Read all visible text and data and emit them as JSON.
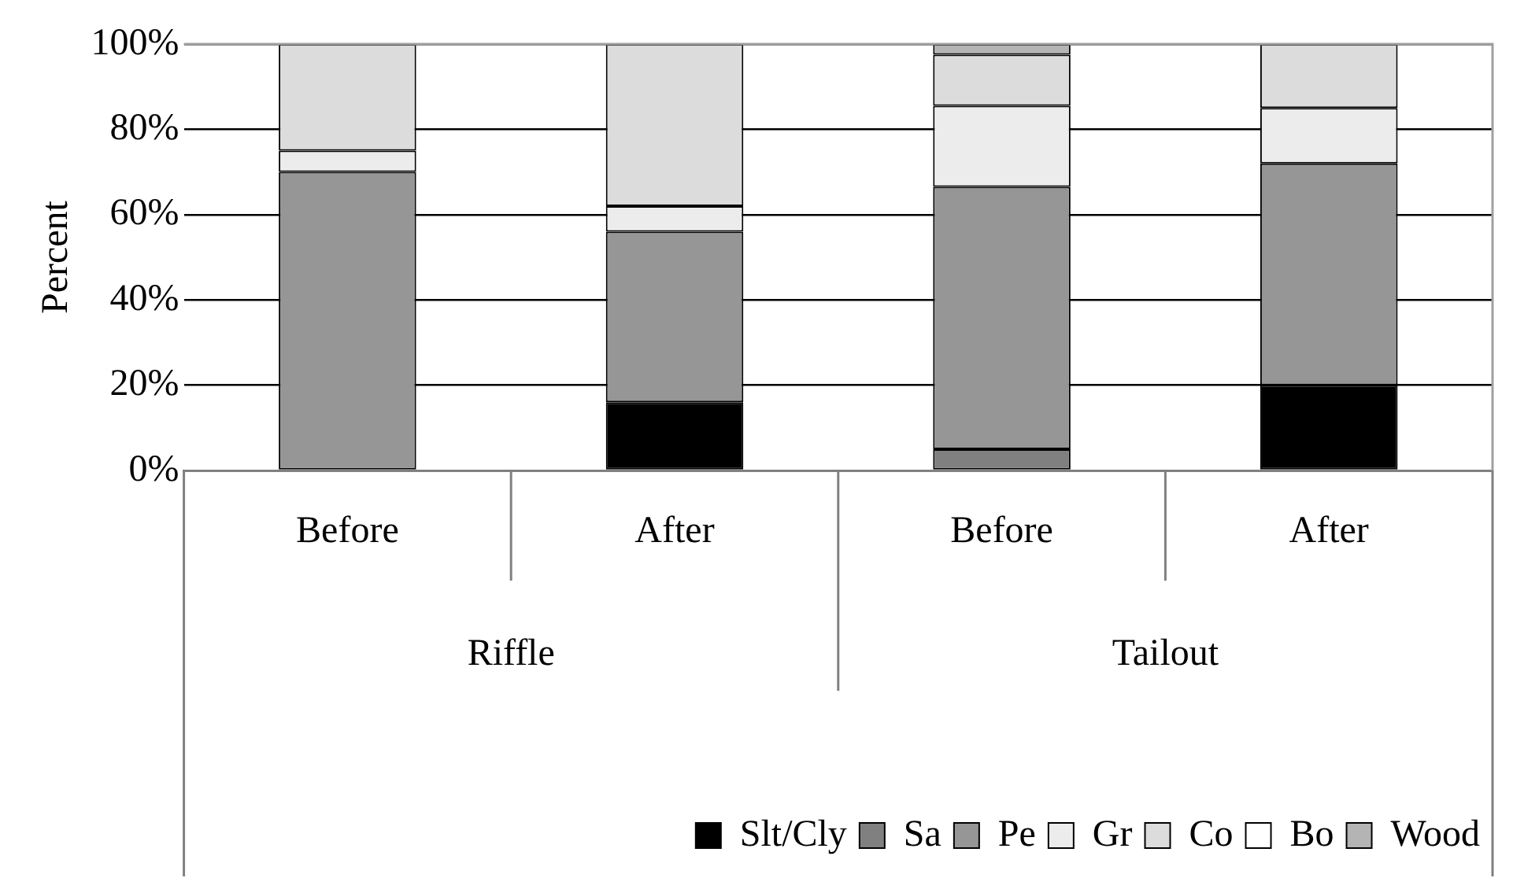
{
  "chart_data": {
    "type": "bar",
    "stacked": true,
    "ylabel": "Percent",
    "categories": [
      "Before",
      "After",
      "Before",
      "After"
    ],
    "annotations": [
      "Riffle",
      "Tailout"
    ],
    "series": [
      {
        "name": "Slt/Cly",
        "color": "#000000",
        "values": [
          0,
          16,
          0,
          20
        ]
      },
      {
        "name": "Sa",
        "color": "#808080",
        "values": [
          0,
          0,
          5,
          0
        ]
      },
      {
        "name": "Pe",
        "color": "#969696",
        "values": [
          70,
          40,
          61.5,
          52
        ]
      },
      {
        "name": "Gr",
        "color": "#ececec",
        "values": [
          5,
          6,
          19,
          13
        ]
      },
      {
        "name": "Co",
        "color": "#dcdcdc",
        "values": [
          25,
          38,
          12,
          15
        ]
      },
      {
        "name": "Bo",
        "color": "#ffffff",
        "values": [
          null,
          null,
          null,
          null
        ]
      },
      {
        "name": "Wood",
        "color": "#b4b4b4",
        "values": [
          null,
          null,
          2.5,
          null
        ]
      }
    ],
    "ylim": [
      0,
      100
    ],
    "yticks": [
      {
        "value": 0,
        "label": "0%"
      },
      {
        "value": 20,
        "label": "20%"
      },
      {
        "value": 40,
        "label": "40%"
      },
      {
        "value": 60,
        "label": "60%"
      },
      {
        "value": 80,
        "label": "80%"
      },
      {
        "value": 100,
        "label": "100%"
      }
    ],
    "grid": "y",
    "legend": "bottom"
  }
}
